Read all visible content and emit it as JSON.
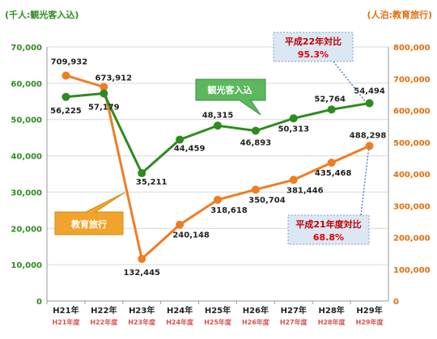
{
  "chart_data": {
    "type": "line",
    "categories_top": [
      "H21年",
      "H22年",
      "H23年",
      "H24年",
      "H25年",
      "H26年",
      "H27年",
      "H28年",
      "H29年"
    ],
    "categories_bottom": [
      "H21年度",
      "H22年度",
      "H23年度",
      "H24年度",
      "H25年度",
      "H26年度",
      "H27年度",
      "H28年度",
      "H29年度"
    ],
    "left_axis": {
      "unit_label": "(千人:観光客入込)",
      "ylim": [
        0,
        70000
      ],
      "ticks": [
        "0",
        "10,000",
        "20,000",
        "30,000",
        "40,000",
        "50,000",
        "60,000",
        "70,000"
      ]
    },
    "right_axis": {
      "unit_label": "(人泊:教育旅行)",
      "ylim": [
        0,
        800000
      ],
      "ticks": [
        "0",
        "100,000",
        "200,000",
        "300,000",
        "400,000",
        "500,000",
        "600,000",
        "700,000",
        "800,000"
      ]
    },
    "series": [
      {
        "name": "観光客入込",
        "axis": "left",
        "color": "#2e8b1f",
        "values": [
          56225,
          57179,
          35211,
          44459,
          48315,
          46893,
          50313,
          52764,
          54494
        ],
        "labels": [
          "56,225",
          "57,179",
          "35,211",
          "44,459",
          "48,315",
          "46,893",
          "50,313",
          "52,764",
          "54,494"
        ]
      },
      {
        "name": "教育旅行",
        "axis": "right",
        "color": "#ef7d22",
        "values": [
          709932,
          673912,
          132445,
          240148,
          318618,
          350704,
          381446,
          435468,
          488298
        ],
        "labels": [
          "709,932",
          "673,912",
          "132,445",
          "240,148",
          "318,618",
          "350,704",
          "381,446",
          "435,468",
          "488,298"
        ]
      }
    ],
    "annotations": [
      {
        "title": "平成22年対比",
        "value": "95.3%"
      },
      {
        "title": "平成21年度対比",
        "value": "68.8%"
      }
    ],
    "grid": true
  }
}
